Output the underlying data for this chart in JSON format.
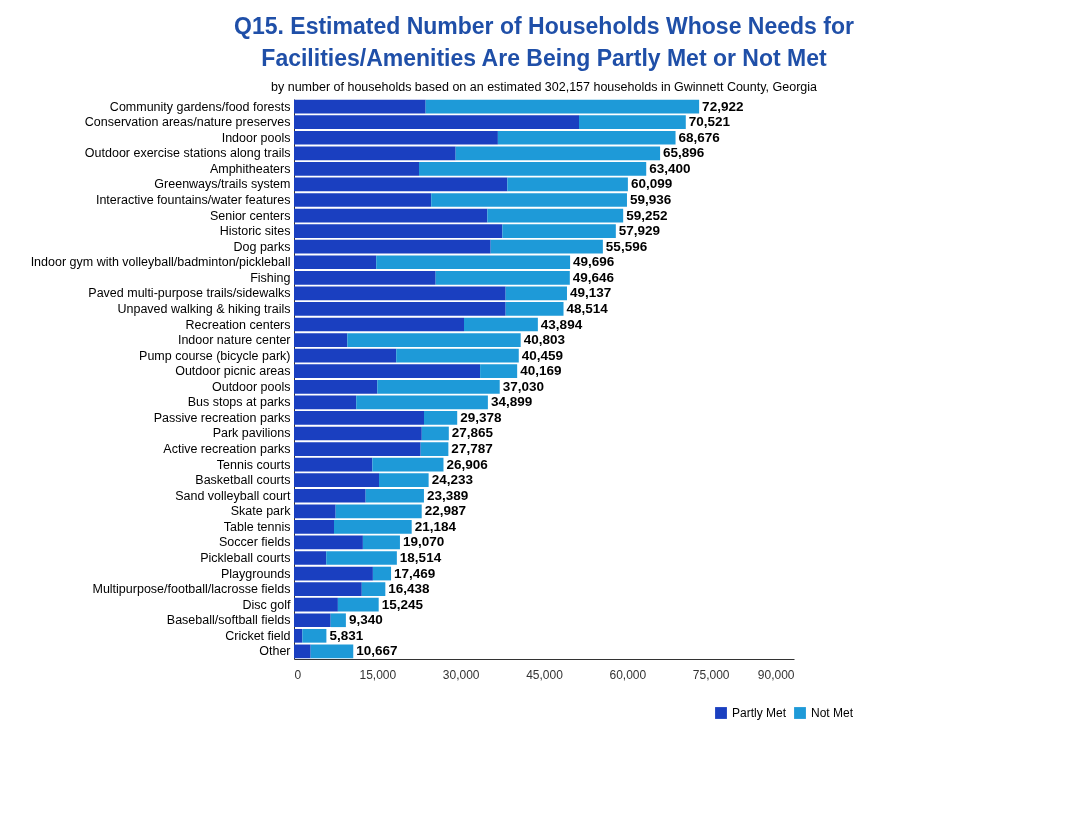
{
  "chart_data": {
    "type": "bar",
    "orientation": "horizontal",
    "stacked": true,
    "title": "Q15. Estimated Number of Households Whose Needs for Facilities/Amenities Are Being Partly Met or Not Met",
    "subtitle": "by number of households based on an estimated 302,157 households in Gwinnett County, Georgia",
    "categories": [
      "Community gardens/food forests",
      "Conservation areas/nature preserves",
      "Indoor pools",
      "Outdoor exercise stations along trails",
      "Amphitheaters",
      "Greenways/trails system",
      "Interactive fountains/water features",
      "Senior centers",
      "Historic sites",
      "Dog parks",
      "Indoor gym with volleyball/badminton/pickleball",
      "Fishing",
      "Paved multi-purpose trails/sidewalks",
      "Unpaved walking & hiking trails",
      "Recreation centers",
      "Indoor nature center",
      "Pump course (bicycle park)",
      "Outdoor picnic areas",
      "Outdoor pools",
      "Bus stops at parks",
      "Passive recreation parks",
      "Park pavilions",
      "Active recreation parks",
      "Tennis courts",
      "Basketball courts",
      "Sand volleyball court",
      "Skate park",
      "Table tennis",
      "Soccer fields",
      "Pickleball courts",
      "Playgrounds",
      "Multipurpose/football/lacrosse fields",
      "Disc golf",
      "Baseball/softball fields",
      "Cricket field",
      "Other"
    ],
    "series": [
      {
        "name": "Partly Met",
        "color": "#1a3fc0",
        "values": [
          23700,
          51300,
          36700,
          29100,
          22500,
          38400,
          24700,
          34800,
          37500,
          35400,
          14800,
          25500,
          38100,
          38100,
          30600,
          9600,
          18400,
          33500,
          15000,
          11200,
          23400,
          23000,
          22800,
          14100,
          15300,
          12900,
          7500,
          7200,
          12400,
          5800,
          14200,
          12200,
          7900,
          6600,
          1500,
          3000
        ]
      },
      {
        "name": "Not Met",
        "color": "#1e9ad8",
        "values": [
          49222,
          19221,
          31976,
          36796,
          40900,
          21699,
          35236,
          24452,
          20429,
          20196,
          34896,
          24146,
          11037,
          10414,
          13294,
          31203,
          22059,
          6669,
          22030,
          23699,
          5978,
          4865,
          4987,
          12806,
          8933,
          10489,
          15487,
          13984,
          6670,
          12714,
          3269,
          4238,
          7345,
          2740,
          4331,
          7667
        ]
      }
    ],
    "totals": [
      "72,922",
      "70,521",
      "68,676",
      "65,896",
      "63,400",
      "60,099",
      "59,936",
      "59,252",
      "57,929",
      "55,596",
      "49,696",
      "49,646",
      "49,137",
      "48,514",
      "43,894",
      "40,803",
      "40,459",
      "40,169",
      "37,030",
      "34,899",
      "29,378",
      "27,865",
      "27,787",
      "26,906",
      "24,233",
      "23,389",
      "22,987",
      "21,184",
      "19,070",
      "18,514",
      "17,469",
      "16,438",
      "15,245",
      "9,340",
      "5,831",
      "10,667"
    ],
    "xlim": [
      0,
      90000
    ],
    "xticks": [
      0,
      {
        "value": 15000,
        "label": "15,000"
      },
      {
        "value": 30000,
        "label": "30,000"
      },
      {
        "value": 45000,
        "label": "45,000"
      },
      {
        "value": 60000,
        "label": "60,000"
      },
      {
        "value": 75000,
        "label": "75,000"
      },
      {
        "value": 90000,
        "label": "90,000"
      }
    ],
    "grid": false,
    "legend": "bottom right"
  }
}
